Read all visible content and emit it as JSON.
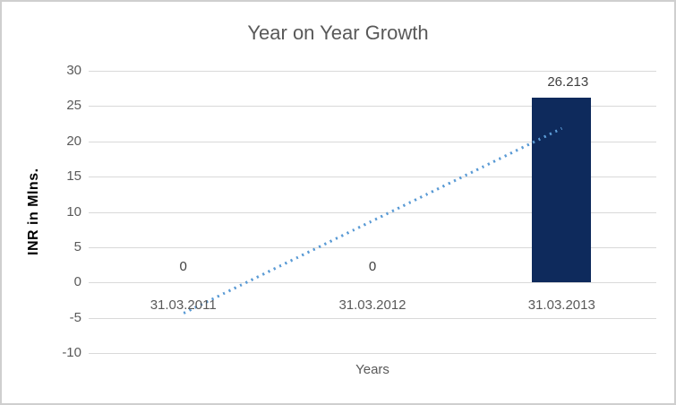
{
  "window": {
    "background_color": "#ffffff",
    "border_color": "#cfcfcf"
  },
  "chart_data": {
    "type": "bar",
    "title": "Year on Year Growth",
    "xlabel": "Years",
    "ylabel": "INR in Mlns.",
    "categories": [
      "31.03.2011",
      "31.03.2012",
      "31.03.2013"
    ],
    "values": [
      0,
      0,
      26.213
    ],
    "data_labels": [
      "0",
      "0",
      "26.213"
    ],
    "yticks": [
      30,
      25,
      20,
      15,
      10,
      5,
      0,
      -5,
      -10
    ],
    "ylim": [
      -10,
      30
    ],
    "ytick_step": 5,
    "grid": "horizontal",
    "legend": "none",
    "trendline": {
      "type": "linear",
      "style": "dotted",
      "start_category": "31.03.2011",
      "end_category": "31.03.2013",
      "start_value": -4.37,
      "end_value": 21.84
    },
    "colors": {
      "bar": "#0e2a5c",
      "trendline": "#5b9bd5",
      "gridline": "#d9d9d9",
      "title_text": "#595959",
      "tick_text": "#595959",
      "data_label_text": "#404040",
      "y_axis_title_text": "#000000",
      "x_axis_title_text": "#595959"
    }
  }
}
